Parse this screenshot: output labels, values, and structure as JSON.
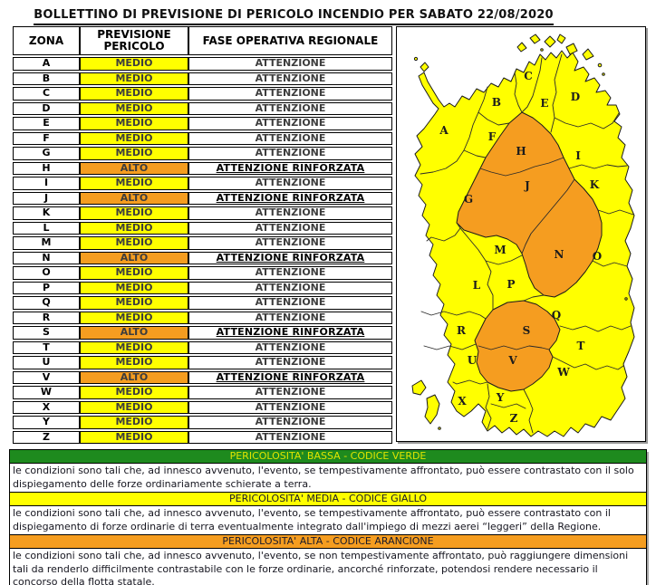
{
  "title": "BOLLETTINO DI PREVISIONE DI PERICOLO INCENDIO PER SABATO 22/08/2020",
  "table": {
    "headers": [
      "ZONA",
      "PREVISIONE PERICOLO",
      "FASE OPERATIVA REGIONALE"
    ],
    "rows": [
      {
        "zona": "A",
        "previsione": "MEDIO",
        "fase": "ATTENZIONE"
      },
      {
        "zona": "B",
        "previsione": "MEDIO",
        "fase": "ATTENZIONE"
      },
      {
        "zona": "C",
        "previsione": "MEDIO",
        "fase": "ATTENZIONE"
      },
      {
        "zona": "D",
        "previsione": "MEDIO",
        "fase": "ATTENZIONE"
      },
      {
        "zona": "E",
        "previsione": "MEDIO",
        "fase": "ATTENZIONE"
      },
      {
        "zona": "F",
        "previsione": "MEDIO",
        "fase": "ATTENZIONE"
      },
      {
        "zona": "G",
        "previsione": "MEDIO",
        "fase": "ATTENZIONE"
      },
      {
        "zona": "H",
        "previsione": "ALTO",
        "fase": "ATTENZIONE RINFORZATA"
      },
      {
        "zona": "I",
        "previsione": "MEDIO",
        "fase": "ATTENZIONE"
      },
      {
        "zona": "J",
        "previsione": "ALTO",
        "fase": "ATTENZIONE RINFORZATA"
      },
      {
        "zona": "K",
        "previsione": "MEDIO",
        "fase": "ATTENZIONE"
      },
      {
        "zona": "L",
        "previsione": "MEDIO",
        "fase": "ATTENZIONE"
      },
      {
        "zona": "M",
        "previsione": "MEDIO",
        "fase": "ATTENZIONE"
      },
      {
        "zona": "N",
        "previsione": "ALTO",
        "fase": "ATTENZIONE RINFORZATA"
      },
      {
        "zona": "O",
        "previsione": "MEDIO",
        "fase": "ATTENZIONE"
      },
      {
        "zona": "P",
        "previsione": "MEDIO",
        "fase": "ATTENZIONE"
      },
      {
        "zona": "Q",
        "previsione": "MEDIO",
        "fase": "ATTENZIONE"
      },
      {
        "zona": "R",
        "previsione": "MEDIO",
        "fase": "ATTENZIONE"
      },
      {
        "zona": "S",
        "previsione": "ALTO",
        "fase": "ATTENZIONE RINFORZATA"
      },
      {
        "zona": "T",
        "previsione": "MEDIO",
        "fase": "ATTENZIONE"
      },
      {
        "zona": "U",
        "previsione": "MEDIO",
        "fase": "ATTENZIONE"
      },
      {
        "zona": "V",
        "previsione": "ALTO",
        "fase": "ATTENZIONE RINFORZATA"
      },
      {
        "zona": "W",
        "previsione": "MEDIO",
        "fase": "ATTENZIONE"
      },
      {
        "zona": "X",
        "previsione": "MEDIO",
        "fase": "ATTENZIONE"
      },
      {
        "zona": "Y",
        "previsione": "MEDIO",
        "fase": "ATTENZIONE"
      },
      {
        "zona": "Z",
        "previsione": "MEDIO",
        "fase": "ATTENZIONE"
      }
    ]
  },
  "map": {
    "zones": [
      {
        "letter": "A",
        "level": "medio"
      },
      {
        "letter": "B",
        "level": "medio"
      },
      {
        "letter": "C",
        "level": "medio"
      },
      {
        "letter": "D",
        "level": "medio"
      },
      {
        "letter": "E",
        "level": "medio"
      },
      {
        "letter": "F",
        "level": "medio"
      },
      {
        "letter": "G",
        "level": "medio"
      },
      {
        "letter": "H",
        "level": "alto"
      },
      {
        "letter": "I",
        "level": "medio"
      },
      {
        "letter": "J",
        "level": "alto"
      },
      {
        "letter": "K",
        "level": "medio"
      },
      {
        "letter": "L",
        "level": "medio"
      },
      {
        "letter": "M",
        "level": "medio"
      },
      {
        "letter": "N",
        "level": "alto"
      },
      {
        "letter": "O",
        "level": "medio"
      },
      {
        "letter": "P",
        "level": "medio"
      },
      {
        "letter": "Q",
        "level": "medio"
      },
      {
        "letter": "R",
        "level": "medio"
      },
      {
        "letter": "S",
        "level": "alto"
      },
      {
        "letter": "T",
        "level": "medio"
      },
      {
        "letter": "U",
        "level": "medio"
      },
      {
        "letter": "V",
        "level": "alto"
      },
      {
        "letter": "W",
        "level": "medio"
      },
      {
        "letter": "X",
        "level": "medio"
      },
      {
        "letter": "Y",
        "level": "medio"
      },
      {
        "letter": "Z",
        "level": "medio"
      }
    ]
  },
  "colors": {
    "medio": "#FFFF00",
    "alto": "#F59D20",
    "verde": "#1E8A1E",
    "verde_text": "#DFE400",
    "dark_text": "#1a1a2a"
  },
  "legend": [
    {
      "code": "verde",
      "header": "PERICOLOSITA' BASSA - CODICE VERDE",
      "text": "le condizioni sono tali che, ad innesco avvenuto, l'evento, se tempestivamente affrontato, può essere contrastato con il solo dispiegamento delle forze ordinariamente schierate a terra."
    },
    {
      "code": "giallo",
      "header": "PERICOLOSITA' MEDIA - CODICE GIALLO",
      "text": "le condizioni sono tali che, ad innesco avvenuto, l'evento, se tempestivamente affrontato, può essere contrastato con il dispiegamento di forze ordinarie di terra eventualmente integrato dall'impiego di mezzi aerei “leggeri” della Regione."
    },
    {
      "code": "arancione",
      "header": "PERICOLOSITA' ALTA - CODICE ARANCIONE",
      "text": "le condizioni sono tali che, ad innesco avvenuto, l'evento, se non tempestivamente affrontato, può raggiungere dimensioni tali da renderlo difficilmente contrastabile con le forze ordinarie, ancorché rinforzate, potendosi rendere necessario il concorso della flotta statale."
    }
  ]
}
